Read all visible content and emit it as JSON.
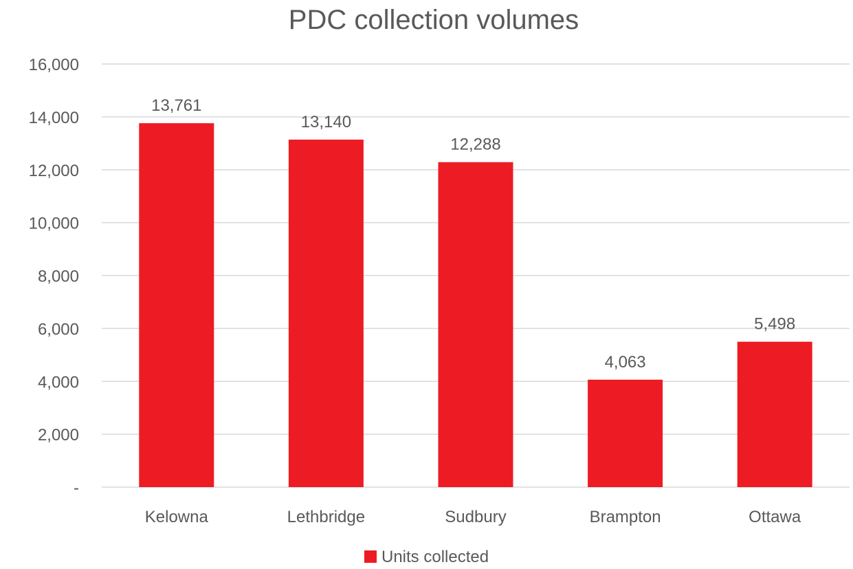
{
  "chart_data": {
    "type": "bar",
    "title": "PDC collection volumes",
    "xlabel": "",
    "ylabel": "",
    "categories": [
      "Kelowna",
      "Lethbridge",
      "Sudbury",
      "Brampton",
      "Ottawa"
    ],
    "series": [
      {
        "name": "Units collected",
        "values": [
          13761,
          13140,
          12288,
          4063,
          5498
        ],
        "labels": [
          "13,761",
          "13,140",
          "12,288",
          "4,063",
          "5,498"
        ],
        "color": "#ED1C24"
      }
    ],
    "ylim": [
      0,
      16000
    ],
    "yticks": [
      0,
      2000,
      4000,
      6000,
      8000,
      10000,
      12000,
      14000,
      16000
    ],
    "ytick_labels": [
      "-",
      "2,000",
      "4,000",
      "6,000",
      "8,000",
      "10,000",
      "12,000",
      "14,000",
      "16,000"
    ],
    "grid": true,
    "legend_position": "bottom",
    "colors": {
      "text": "#595959",
      "grid": "#D9D9D9"
    }
  }
}
